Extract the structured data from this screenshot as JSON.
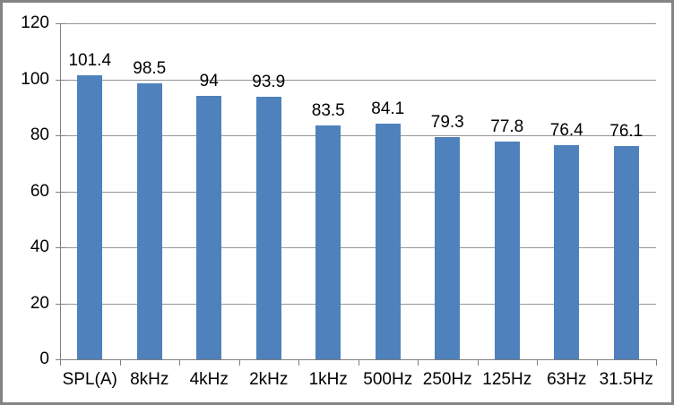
{
  "chart_data": {
    "type": "bar",
    "title": "",
    "xlabel": "",
    "ylabel": "",
    "categories": [
      "SPL(A)",
      "8kHz",
      "4kHz",
      "2kHz",
      "1kHz",
      "500Hz",
      "250Hz",
      "125Hz",
      "63Hz",
      "31.5Hz"
    ],
    "values": [
      101.4,
      98.5,
      94,
      93.9,
      83.5,
      84.1,
      79.3,
      77.8,
      76.4,
      76.1
    ],
    "data_labels": [
      "101.4",
      "98.5",
      "94",
      "93.9",
      "83.5",
      "84.1",
      "79.3",
      "77.8",
      "76.4",
      "76.1"
    ],
    "ylim": [
      0,
      120
    ],
    "yticks": [
      0,
      20,
      40,
      60,
      80,
      100,
      120
    ],
    "grid": true,
    "legend": false,
    "colors": {
      "bar": "#4F81BD",
      "gridline": "#969696",
      "axis": "#808080",
      "text": "#000000",
      "chart_border": "#848484",
      "background": "#FFFFFF"
    }
  }
}
